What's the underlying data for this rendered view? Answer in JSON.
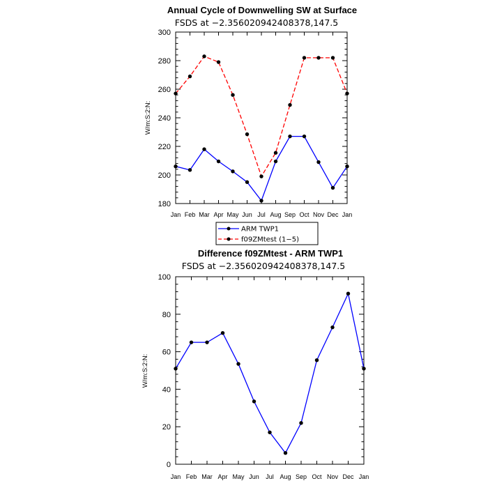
{
  "chart_data": [
    {
      "type": "line",
      "title": "Annual Cycle of Downwelling SW at Surface",
      "subtitle": "FSDS at −2.356020942408378,147.5",
      "xlabel": "",
      "ylabel": "W/m:S:2:N:",
      "categories": [
        "Jan",
        "Feb",
        "Mar",
        "Apr",
        "May",
        "Jun",
        "Jul",
        "Aug",
        "Sep",
        "Oct",
        "Nov",
        "Dec",
        "Jan"
      ],
      "ylim": [
        180,
        300
      ],
      "yticks": [
        180,
        200,
        220,
        240,
        260,
        280,
        300
      ],
      "series": [
        {
          "name": "ARM TWP1",
          "color": "#0000ff",
          "dash": "solid",
          "values": [
            206,
            203.5,
            218,
            209.5,
            202.5,
            195,
            182,
            209.5,
            227,
            227,
            209,
            191,
            206
          ]
        },
        {
          "name": "f09ZMtest (1-5)",
          "color": "#ff0000",
          "dash": "dashed",
          "values": [
            257,
            269,
            283,
            279,
            256,
            228.5,
            199,
            215.5,
            249,
            282,
            282,
            282,
            257
          ]
        }
      ],
      "legend": {
        "position": "bottom-center",
        "entries": [
          "ARM  TWP1",
          "f09ZMtest  (1−5)"
        ]
      }
    },
    {
      "type": "line",
      "title": "Difference f09ZMtest - ARM TWP1",
      "subtitle": "FSDS at −2.356020942408378,147.5",
      "xlabel": "",
      "ylabel": "W/m:S:2:N:",
      "categories": [
        "Jan",
        "Feb",
        "Mar",
        "Apr",
        "May",
        "Jun",
        "Jul",
        "Aug",
        "Sep",
        "Oct",
        "Nov",
        "Dec",
        "Jan"
      ],
      "ylim": [
        0,
        100
      ],
      "yticks": [
        0,
        20,
        40,
        60,
        80,
        100
      ],
      "series": [
        {
          "name": "Difference",
          "color": "#0000ff",
          "dash": "solid",
          "values": [
            51,
            65,
            65,
            70,
            53.5,
            33.5,
            17,
            6,
            22,
            55.5,
            73,
            91,
            51
          ]
        }
      ]
    }
  ]
}
